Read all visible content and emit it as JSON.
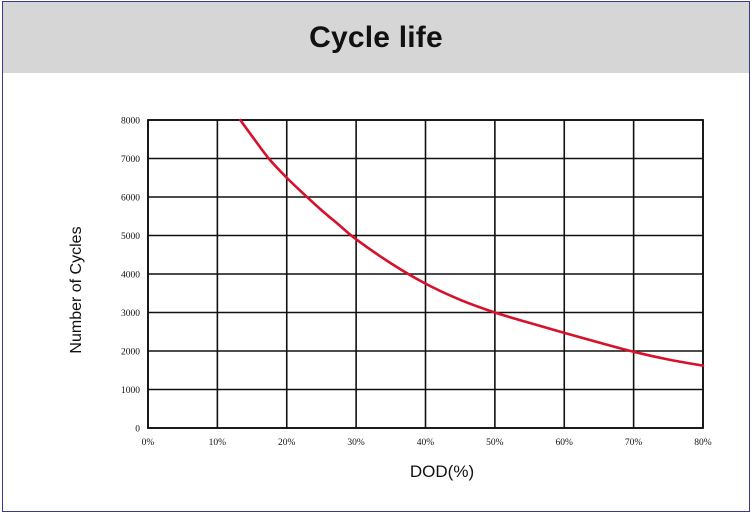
{
  "header": {
    "title": "Cycle life"
  },
  "chart_data": {
    "type": "line",
    "title": "Cycle life",
    "xlabel": "DOD(%)",
    "ylabel": "Number of Cycles",
    "xlim": [
      0,
      80
    ],
    "ylim": [
      0,
      8000
    ],
    "x_ticks": [
      0,
      10,
      20,
      30,
      40,
      50,
      60,
      70,
      80
    ],
    "x_tick_labels": [
      "0%",
      "10%",
      "20%",
      "30%",
      "40%",
      "50%",
      "60%",
      "70%",
      "80%"
    ],
    "y_ticks": [
      0,
      1000,
      2000,
      3000,
      4000,
      5000,
      6000,
      7000,
      8000
    ],
    "y_tick_labels": [
      "0",
      "1000",
      "2000",
      "3000",
      "4000",
      "5000",
      "6000",
      "7000",
      "8000"
    ],
    "grid": true,
    "series": [
      {
        "color": "#d7102b",
        "x": [
          13.3,
          15,
          17.5,
          20,
          22.5,
          25,
          27.5,
          30,
          35,
          40,
          45,
          50,
          55,
          60,
          65,
          70,
          75,
          80
        ],
        "y": [
          8000,
          7580,
          6980,
          6500,
          6070,
          5660,
          5280,
          4900,
          4280,
          3750,
          3330,
          3000,
          2730,
          2470,
          2220,
          1980,
          1780,
          1620
        ]
      }
    ]
  }
}
